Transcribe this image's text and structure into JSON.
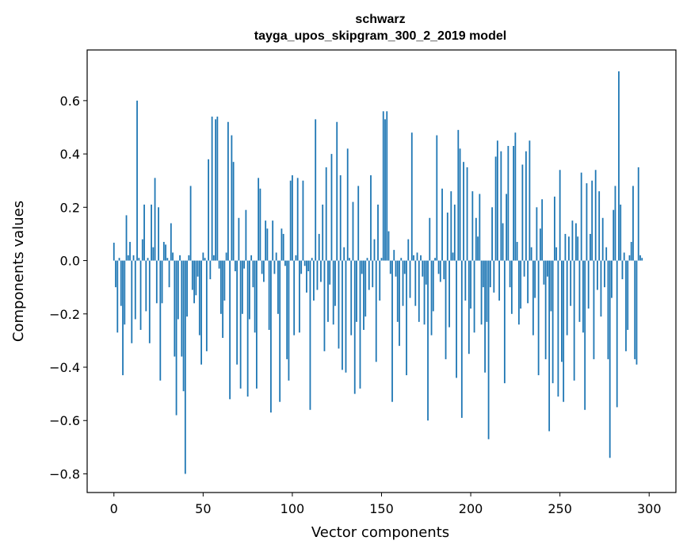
{
  "chart_data": {
    "type": "bar",
    "title": "schwarz",
    "subtitle": "tayga_upos_skipgram_300_2_2019 model",
    "xlabel": "Vector components",
    "ylabel": "Components values",
    "xlim": [
      -15,
      315
    ],
    "ylim": [
      -0.87,
      0.79
    ],
    "xticks": [
      0,
      50,
      100,
      150,
      200,
      250,
      300
    ],
    "yticks": [
      -0.8,
      -0.6,
      -0.4,
      -0.2,
      0.0,
      0.2,
      0.4,
      0.6
    ],
    "ytick_labels": [
      "−0.8",
      "−0.6",
      "−0.4",
      "−0.2",
      "0.0",
      "0.2",
      "0.4",
      "0.6"
    ],
    "bar_color": "#1f77b4",
    "values": [
      0.067,
      -0.1,
      -0.27,
      0.01,
      -0.17,
      -0.43,
      -0.24,
      0.17,
      0.02,
      0.07,
      -0.31,
      0.02,
      -0.22,
      0.6,
      0.01,
      -0.26,
      0.08,
      0.21,
      -0.19,
      0.01,
      -0.31,
      0.21,
      0.05,
      0.31,
      -0.16,
      0.2,
      -0.45,
      -0.16,
      0.07,
      0.06,
      0.01,
      -0.1,
      0.14,
      0.03,
      -0.36,
      -0.58,
      -0.22,
      0.02,
      -0.36,
      -0.49,
      -0.8,
      -0.21,
      0.02,
      0.28,
      -0.11,
      -0.16,
      -0.13,
      -0.06,
      -0.28,
      -0.39,
      0.03,
      0.01,
      -0.34,
      0.38,
      -0.07,
      0.54,
      0.02,
      0.53,
      0.54,
      -0.03,
      -0.2,
      -0.29,
      -0.15,
      0.03,
      0.52,
      -0.52,
      0.47,
      0.37,
      -0.04,
      -0.39,
      0.16,
      -0.48,
      -0.2,
      -0.03,
      0.19,
      -0.51,
      -0.22,
      0.02,
      -0.1,
      -0.27,
      -0.48,
      0.31,
      0.27,
      -0.05,
      -0.08,
      0.15,
      0.12,
      -0.26,
      -0.57,
      0.15,
      -0.05,
      0.03,
      -0.2,
      -0.53,
      0.12,
      0.1,
      -0.02,
      -0.37,
      -0.45,
      0.3,
      0.32,
      -0.28,
      0.02,
      0.31,
      -0.27,
      -0.05,
      0.3,
      -0.02,
      -0.12,
      -0.04,
      -0.56,
      0.01,
      -0.15,
      0.53,
      -0.11,
      0.1,
      -0.08,
      0.21,
      -0.34,
      0.35,
      -0.23,
      -0.09,
      0.4,
      -0.24,
      -0.17,
      0.52,
      -0.33,
      0.32,
      -0.41,
      0.05,
      -0.42,
      0.42,
      0.01,
      -0.28,
      0.22,
      -0.5,
      -0.23,
      0.28,
      -0.48,
      -0.05,
      -0.26,
      -0.21,
      0.01,
      -0.11,
      0.32,
      -0.1,
      0.08,
      -0.38,
      0.21,
      -0.15,
      0.01,
      0.56,
      0.53,
      0.56,
      0.11,
      -0.05,
      -0.53,
      0.04,
      -0.06,
      -0.23,
      -0.32,
      0.01,
      -0.17,
      -0.05,
      -0.43,
      0.08,
      -0.14,
      0.48,
      0.02,
      -0.17,
      0.03,
      -0.23,
      0.02,
      -0.06,
      -0.24,
      -0.09,
      -0.6,
      0.16,
      -0.28,
      -0.19,
      0.01,
      0.47,
      -0.05,
      -0.08,
      0.27,
      -0.07,
      -0.37,
      0.18,
      -0.25,
      0.26,
      0.03,
      0.21,
      -0.44,
      0.49,
      0.42,
      -0.59,
      0.37,
      -0.15,
      0.35,
      -0.35,
      -0.18,
      0.26,
      -0.27,
      0.16,
      0.09,
      0.25,
      -0.24,
      -0.1,
      -0.42,
      -0.23,
      -0.67,
      -0.1,
      0.2,
      -0.12,
      0.39,
      0.45,
      -0.15,
      0.41,
      0.14,
      -0.46,
      0.25,
      0.43,
      -0.1,
      -0.2,
      0.43,
      0.48,
      0.07,
      -0.24,
      -0.18,
      0.36,
      -0.06,
      0.41,
      -0.16,
      0.45,
      0.05,
      -0.28,
      -0.14,
      0.2,
      -0.43,
      0.12,
      0.23,
      -0.09,
      -0.37,
      -0.06,
      -0.64,
      -0.19,
      -0.46,
      0.24,
      0.05,
      -0.51,
      0.34,
      -0.38,
      -0.53,
      0.1,
      -0.28,
      0.09,
      -0.17,
      0.15,
      -0.45,
      0.14,
      0.09,
      -0.23,
      0.33,
      -0.27,
      -0.56,
      0.29,
      -0.18,
      0.1,
      0.3,
      -0.37,
      0.34,
      -0.11,
      0.26,
      -0.21,
      0.16,
      -0.1,
      0.05,
      -0.37,
      -0.74,
      -0.14,
      0.19,
      0.28,
      -0.55,
      0.71,
      0.21,
      -0.07,
      0.03,
      -0.34,
      -0.26,
      0.02,
      0.07,
      0.28,
      -0.37,
      -0.39,
      0.35,
      0.02,
      0.01
    ]
  }
}
